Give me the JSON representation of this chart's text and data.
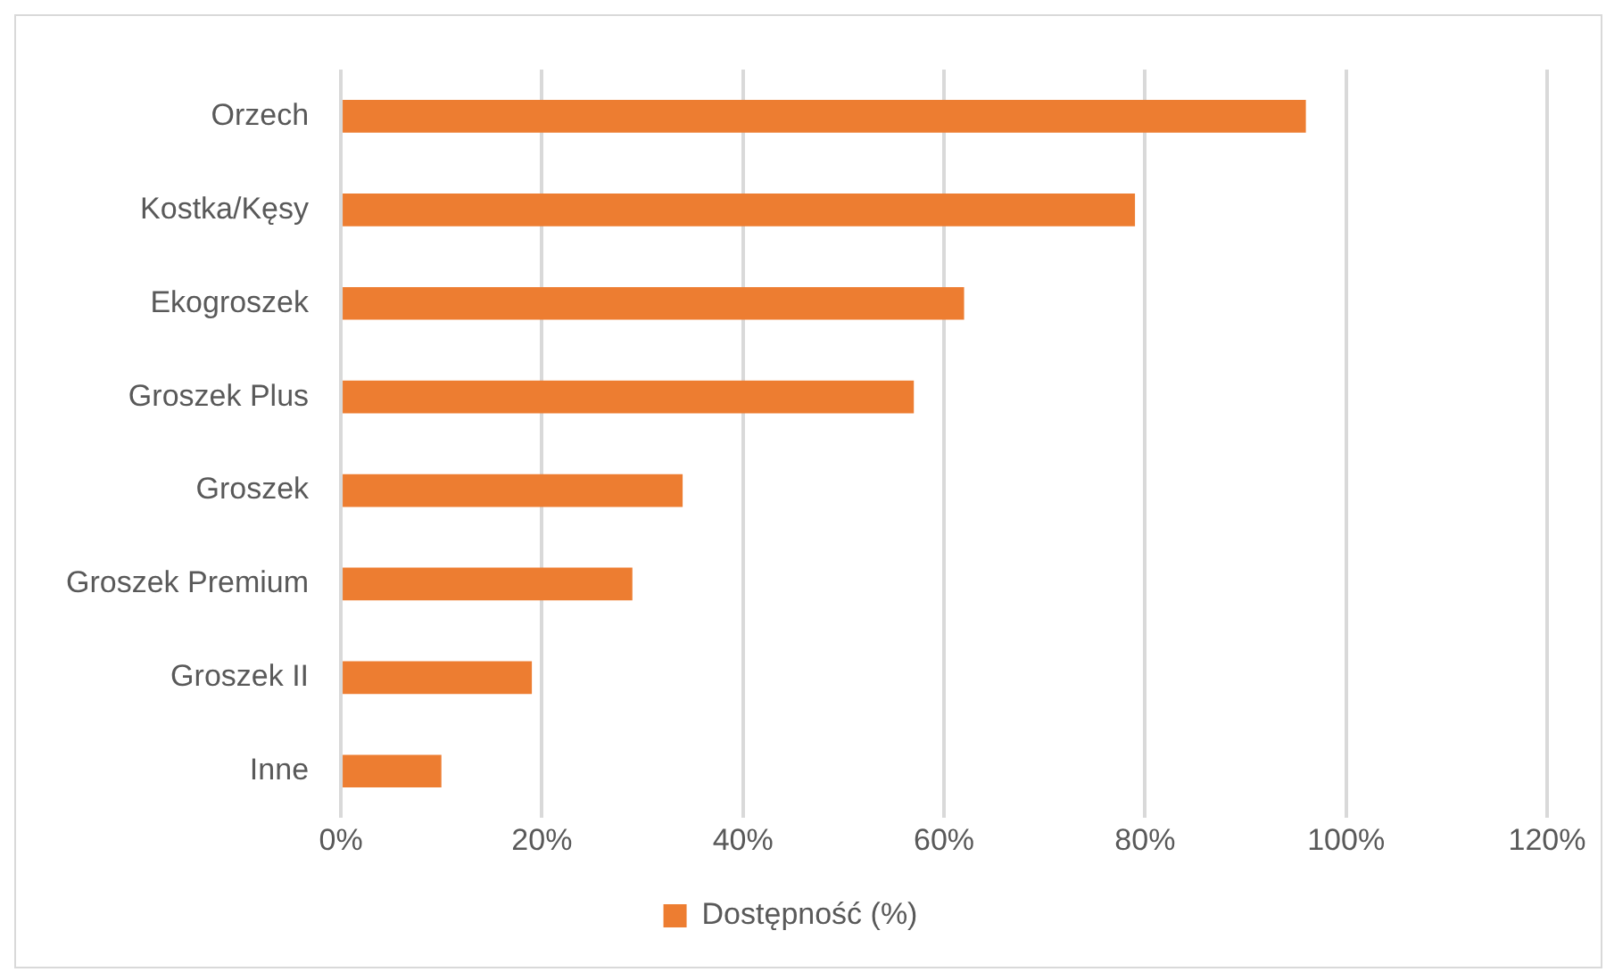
{
  "chart_data": {
    "type": "bar",
    "orientation": "horizontal",
    "categories": [
      "Orzech",
      "Kostka/Kęsy",
      "Ekogroszek",
      "Groszek Plus",
      "Groszek",
      "Groszek Premium",
      "Groszek II",
      "Inne"
    ],
    "series": [
      {
        "name": "Dostępność (%)",
        "color": "#ed7d31",
        "values": [
          96,
          79,
          62,
          57,
          34,
          29,
          19,
          10
        ]
      }
    ],
    "xlim": [
      0,
      120
    ],
    "xticks": [
      {
        "value": 0,
        "label": "0%"
      },
      {
        "value": 20,
        "label": "20%"
      },
      {
        "value": 40,
        "label": "40%"
      },
      {
        "value": 60,
        "label": "60%"
      },
      {
        "value": 80,
        "label": "80%"
      },
      {
        "value": 100,
        "label": "100%"
      },
      {
        "value": 120,
        "label": "120%"
      }
    ],
    "grid": "x",
    "legend": "bottom"
  }
}
